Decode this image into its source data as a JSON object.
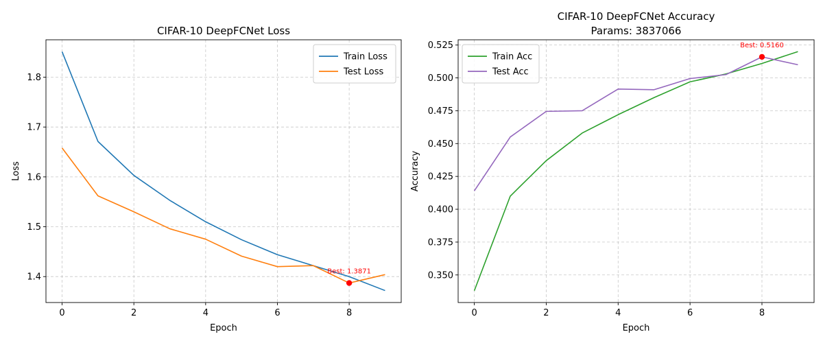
{
  "chart_data": [
    {
      "type": "line",
      "title": "CIFAR-10 DeepFCNet Loss",
      "subtitle": "",
      "xlabel": "Epoch",
      "ylabel": "Loss",
      "x": [
        0,
        1,
        2,
        3,
        4,
        5,
        6,
        7,
        8,
        9
      ],
      "xlim": [
        -0.45,
        9.45
      ],
      "ylim": [
        1.348,
        1.875
      ],
      "xticks": [
        0,
        2,
        4,
        6,
        8
      ],
      "yticks": [
        1.4,
        1.5,
        1.6,
        1.7,
        1.8
      ],
      "ytick_labels": [
        "1.4",
        "1.5",
        "1.6",
        "1.7",
        "1.8"
      ],
      "grid": true,
      "legend": "top-right",
      "series": [
        {
          "name": "Train Loss",
          "color": "#1f77b4",
          "values": [
            1.851,
            1.671,
            1.603,
            1.553,
            1.51,
            1.474,
            1.444,
            1.422,
            1.4,
            1.372
          ]
        },
        {
          "name": "Test Loss",
          "color": "#ff7f0e",
          "values": [
            1.658,
            1.562,
            1.53,
            1.496,
            1.475,
            1.441,
            1.42,
            1.422,
            1.3871,
            1.404
          ]
        }
      ],
      "annotation": {
        "x": 8,
        "y": 1.3871,
        "text": "Best: 1.3871",
        "color": "#ff0000"
      }
    },
    {
      "type": "line",
      "title": "CIFAR-10 DeepFCNet Accuracy",
      "subtitle": "Params: 3837066",
      "xlabel": "Epoch",
      "ylabel": "Accuracy",
      "x": [
        0,
        1,
        2,
        3,
        4,
        5,
        6,
        7,
        8,
        9
      ],
      "xlim": [
        -0.45,
        9.45
      ],
      "ylim": [
        0.329,
        0.529
      ],
      "xticks": [
        0,
        2,
        4,
        6,
        8
      ],
      "yticks": [
        0.35,
        0.375,
        0.4,
        0.425,
        0.45,
        0.475,
        0.5,
        0.525
      ],
      "ytick_labels": [
        "0.350",
        "0.375",
        "0.400",
        "0.425",
        "0.450",
        "0.475",
        "0.500",
        "0.525"
      ],
      "grid": true,
      "legend": "top-left",
      "series": [
        {
          "name": "Train Acc",
          "color": "#2ca02c",
          "values": [
            0.338,
            0.41,
            0.437,
            0.458,
            0.472,
            0.485,
            0.497,
            0.503,
            0.511,
            0.52
          ]
        },
        {
          "name": "Test Acc",
          "color": "#9467bd",
          "values": [
            0.414,
            0.455,
            0.4745,
            0.475,
            0.4915,
            0.491,
            0.4995,
            0.5025,
            0.516,
            0.51
          ]
        }
      ],
      "annotation": {
        "x": 8,
        "y": 0.516,
        "text": "Best: 0.5160",
        "color": "#ff0000"
      }
    }
  ]
}
